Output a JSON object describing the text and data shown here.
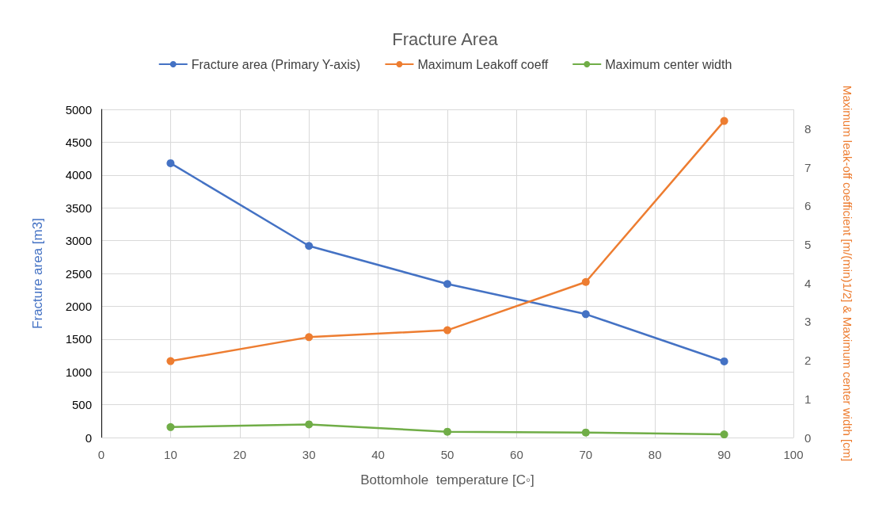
{
  "chart_data": {
    "type": "line",
    "title": "Fracture Area",
    "xlabel": "Bottomhole  temperature [C◦]",
    "ylabel": "Fracture area [m3]",
    "y2label": "Maximum leak-off coefficient [m/(min)1/2] & Maximum center width [cm]",
    "x": [
      10,
      30,
      50,
      70,
      90
    ],
    "series": [
      {
        "name": "Fracture area (Primary Y-axis)",
        "color": "#4472c4",
        "values": [
          4180,
          2920,
          2340,
          1880,
          1160
        ]
      },
      {
        "name": "Maximum Leakoff coeff",
        "color": "#ed7d31",
        "axis": "y2",
        "values": [
          1.98,
          2.6,
          2.78,
          4.03,
          8.2
        ]
      },
      {
        "name": "Maximum center width",
        "color": "#70ad47",
        "axis": "y2",
        "values": [
          0.27,
          0.34,
          0.15,
          0.13,
          0.08
        ]
      }
    ],
    "xlim": [
      0,
      100
    ],
    "xticks": [
      0,
      10,
      20,
      30,
      40,
      50,
      60,
      70,
      80,
      90,
      100
    ],
    "ylim": [
      0,
      5000
    ],
    "yticks": [
      0,
      500,
      1000,
      1500,
      2000,
      2500,
      3000,
      3500,
      4000,
      4500,
      5000
    ],
    "y2lim": [
      0,
      8.5
    ],
    "y2ticks": [
      0,
      1,
      2,
      3,
      4,
      5,
      6,
      7,
      8
    ],
    "grid": true,
    "legend": "top",
    "marker": "circle",
    "line_style": "solid"
  }
}
